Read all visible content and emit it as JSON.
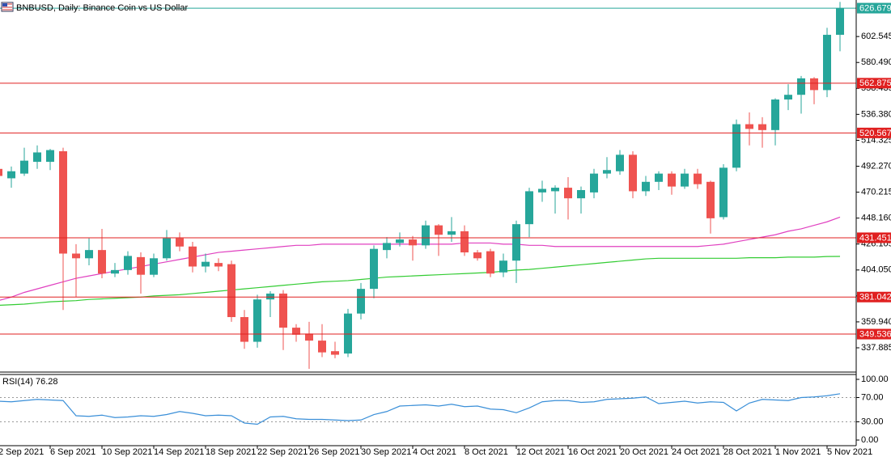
{
  "chart_data": [
    {
      "type": "candlestick",
      "title": "BNBUSD, Daily:  Binance Coin vs US Dollar",
      "categories": [
        "2 Sep 2021",
        null,
        null,
        null,
        "6 Sep 2021",
        null,
        null,
        null,
        "10 Sep 2021",
        null,
        null,
        null,
        "14 Sep 2021",
        null,
        null,
        null,
        "18 Sep 2021",
        null,
        null,
        null,
        "22 Sep 2021",
        null,
        null,
        null,
        "26 Sep 2021",
        null,
        null,
        null,
        "30 Sep 2021",
        null,
        null,
        null,
        "4 Oct 2021",
        null,
        null,
        null,
        "8 Oct 2021",
        null,
        null,
        null,
        "12 Oct 2021",
        null,
        null,
        null,
        "16 Oct 2021",
        null,
        null,
        null,
        "20 Oct 2021",
        null,
        null,
        null,
        "24 Oct 2021",
        null,
        null,
        null,
        "28 Oct 2021",
        null,
        null,
        null,
        "1 Nov 2021",
        null,
        null,
        null,
        "5 Nov 2021",
        null
      ],
      "open": [
        490,
        482,
        486,
        496,
        496,
        505,
        418,
        414,
        421,
        401,
        404,
        415,
        400,
        414,
        431,
        424,
        407,
        410,
        409,
        364,
        343,
        379,
        384,
        355,
        350,
        344,
        335,
        333,
        367,
        388,
        421,
        427,
        430,
        425,
        442,
        434,
        437,
        419,
        420,
        402,
        412,
        443,
        470,
        471,
        474,
        465,
        470,
        486,
        488,
        502,
        471,
        479,
        486,
        475,
        486,
        479,
        449,
        491,
        528,
        528,
        523,
        549,
        553,
        567,
        557,
        604
      ],
      "high": [
        493,
        492,
        508,
        510,
        507,
        508,
        426,
        431,
        439,
        410,
        420,
        419,
        418,
        438,
        436,
        428,
        418,
        414,
        412,
        370,
        383,
        386,
        387,
        358,
        360,
        358,
        343,
        371,
        393,
        425,
        432,
        436,
        433,
        446,
        443,
        449,
        442,
        421,
        422,
        418,
        446,
        474,
        480,
        476,
        483,
        475,
        490,
        500,
        506,
        505,
        484,
        488,
        488,
        490,
        490,
        480,
        494,
        532,
        538,
        534,
        550,
        562,
        569,
        568,
        610,
        632
      ],
      "low": [
        480,
        474,
        484,
        490,
        489,
        370,
        381,
        408,
        397,
        398,
        400,
        384,
        398,
        412,
        420,
        402,
        402,
        403,
        360,
        337,
        338,
        364,
        336,
        343,
        320,
        330,
        329,
        330,
        362,
        380,
        414,
        424,
        412,
        422,
        416,
        428,
        416,
        412,
        398,
        398,
        393,
        432,
        462,
        452,
        447,
        452,
        465,
        482,
        485,
        465,
        467,
        472,
        468,
        473,
        473,
        435,
        447,
        488,
        510,
        508,
        510,
        540,
        537,
        545,
        551,
        590
      ],
      "close": [
        484,
        488,
        497,
        504,
        506,
        418,
        414,
        421,
        401,
        404,
        416,
        400,
        414,
        431,
        424,
        407,
        411,
        407,
        364,
        343,
        379,
        384,
        355,
        349,
        344,
        334,
        332,
        367,
        388,
        422,
        427,
        430,
        425,
        442,
        434,
        437,
        419,
        414,
        401,
        412,
        443,
        471,
        473,
        474,
        465,
        472,
        486,
        489,
        502,
        471,
        479,
        486,
        475,
        486,
        477,
        448,
        491,
        528,
        524,
        523,
        549,
        553,
        567,
        557,
        604,
        626.679
      ],
      "up_color": "#26a69a",
      "down_color": "#ef5350",
      "lines": [
        {
          "color": "#e040c0",
          "values": [
            378,
            381,
            385,
            388,
            391,
            394,
            397,
            399,
            401,
            403,
            405,
            407,
            409,
            411,
            413,
            415,
            417,
            419,
            420,
            421,
            422,
            423,
            424,
            425,
            425,
            426,
            426,
            426,
            426,
            426,
            426,
            426,
            426,
            426,
            426,
            426,
            427,
            427,
            427,
            426,
            426,
            425,
            425,
            424,
            424,
            424,
            424,
            424,
            424,
            424,
            424,
            424,
            424,
            424,
            424,
            425,
            426,
            428,
            430,
            432,
            434,
            437,
            439,
            442,
            445,
            449
          ]
        },
        {
          "color": "#33cc33",
          "values": [
            374,
            374.5,
            375,
            376,
            377,
            377.5,
            378,
            379,
            379.5,
            380,
            380.5,
            381,
            382,
            382.5,
            383,
            384,
            385,
            386,
            387,
            388,
            389,
            390,
            391,
            392,
            393,
            394,
            394.5,
            395,
            396,
            397,
            398,
            398.5,
            399,
            399.5,
            400,
            400.5,
            401,
            401.5,
            402,
            403,
            404,
            404.5,
            405.5,
            406.5,
            407.5,
            408.5,
            409.5,
            410.5,
            411.5,
            412.5,
            413.5,
            414,
            414,
            414,
            414,
            414,
            414,
            414,
            414.5,
            414.5,
            414.5,
            415,
            415,
            415,
            415.5,
            415.6
          ]
        }
      ],
      "hlines": [
        {
          "value": 626.679,
          "color": "#26a69a"
        },
        {
          "value": 562.875,
          "color": "#e02020"
        },
        {
          "value": 520.567,
          "color": "#e02020"
        },
        {
          "value": 431.451,
          "color": "#e02020"
        },
        {
          "value": 381.042,
          "color": "#e02020"
        },
        {
          "value": 349.536,
          "color": "#e02020"
        }
      ],
      "ylim": [
        317.25,
        633.6
      ],
      "yticks": [
        337.885,
        {
          "value": 359.94,
          "label": "359.940"
        },
        381.995,
        {
          "value": 404.05,
          "label": "404.050"
        },
        426.105,
        {
          "value": 448.16,
          "label": "448.160"
        },
        470.215,
        {
          "value": 492.27,
          "label": "492.270"
        },
        514.325,
        {
          "value": 536.38,
          "label": "536.380"
        },
        558.435,
        {
          "value": 580.49,
          "label": "580.490"
        },
        602.545
      ]
    },
    {
      "type": "line",
      "title": "RSI(14) 76.28",
      "color": "#3a8fd8",
      "values": [
        64,
        63,
        65,
        67,
        66,
        65,
        40,
        39,
        41,
        37,
        38,
        40,
        39,
        42,
        47,
        44,
        40,
        41,
        40,
        28,
        26,
        38,
        39,
        35,
        34,
        34,
        33,
        32,
        33,
        42,
        47,
        56,
        57,
        58,
        56,
        59,
        55,
        56,
        51,
        50,
        45,
        53,
        63,
        65,
        65,
        62,
        63,
        67,
        68,
        69,
        71,
        60,
        62,
        64,
        61,
        63,
        62,
        48,
        61,
        67,
        66,
        65,
        70,
        71,
        73,
        76.28
      ],
      "ylim": [
        -9.3,
        108
      ],
      "yticks": [
        {
          "value": 100,
          "label": "100.00"
        },
        {
          "value": 70,
          "label": "70.00"
        },
        {
          "value": 30,
          "label": "30.00"
        },
        {
          "value": 0,
          "label": "0.00"
        }
      ]
    }
  ]
}
